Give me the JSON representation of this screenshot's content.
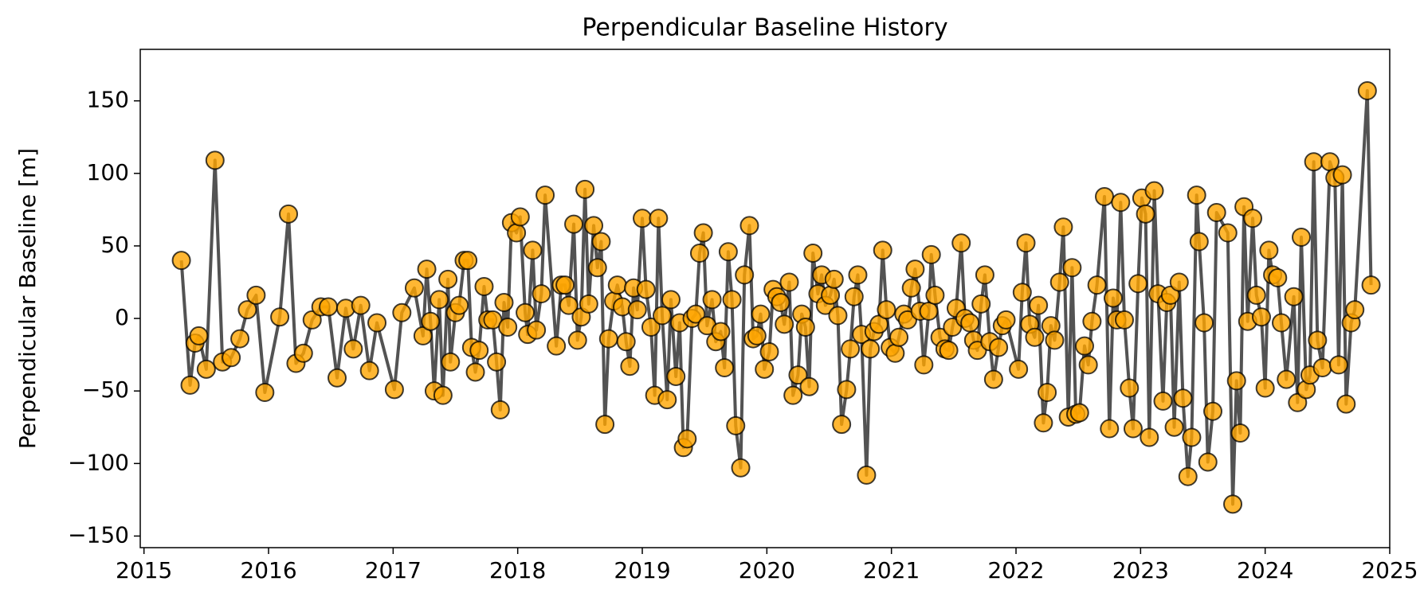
{
  "chart_data": {
    "type": "line",
    "title": "Perpendicular Baseline History",
    "ylabel": "Perpendicular Baseline [m]",
    "x": [
      2015.3,
      2015.37,
      2015.41,
      2015.44,
      2015.5,
      2015.57,
      2015.63,
      2015.7,
      2015.77,
      2015.83,
      2015.9,
      2015.97,
      2016.09,
      2016.16,
      2016.22,
      2016.28,
      2016.35,
      2016.42,
      2016.48,
      2016.55,
      2016.62,
      2016.68,
      2016.74,
      2016.81,
      2016.87,
      2017.01,
      2017.07,
      2017.17,
      2017.24,
      2017.27,
      2017.3,
      2017.33,
      2017.37,
      2017.4,
      2017.44,
      2017.46,
      2017.5,
      2017.53,
      2017.57,
      2017.6,
      2017.63,
      2017.66,
      2017.69,
      2017.73,
      2017.76,
      2017.8,
      2017.83,
      2017.86,
      2017.89,
      2017.92,
      2017.95,
      2017.99,
      2018.02,
      2018.06,
      2018.08,
      2018.12,
      2018.15,
      2018.19,
      2018.22,
      2018.31,
      2018.35,
      2018.38,
      2018.41,
      2018.45,
      2018.48,
      2018.51,
      2018.54,
      2018.57,
      2018.61,
      2018.64,
      2018.67,
      2018.7,
      2018.73,
      2018.77,
      2018.8,
      2018.84,
      2018.87,
      2018.9,
      2018.93,
      2018.96,
      2019.0,
      2019.03,
      2019.07,
      2019.1,
      2019.13,
      2019.16,
      2019.2,
      2019.23,
      2019.27,
      2019.3,
      2019.33,
      2019.36,
      2019.4,
      2019.43,
      2019.46,
      2019.49,
      2019.52,
      2019.56,
      2019.59,
      2019.63,
      2019.66,
      2019.69,
      2019.72,
      2019.75,
      2019.79,
      2019.82,
      2019.86,
      2019.89,
      2019.92,
      2019.95,
      2019.98,
      2020.02,
      2020.05,
      2020.08,
      2020.11,
      2020.14,
      2020.18,
      2020.21,
      2020.25,
      2020.28,
      2020.31,
      2020.34,
      2020.37,
      2020.41,
      2020.44,
      2020.47,
      2020.51,
      2020.54,
      2020.57,
      2020.6,
      2020.64,
      2020.67,
      2020.7,
      2020.73,
      2020.76,
      2020.8,
      2020.83,
      2020.86,
      2020.9,
      2020.93,
      2020.96,
      2020.99,
      2021.03,
      2021.06,
      2021.1,
      2021.13,
      2021.16,
      2021.19,
      2021.23,
      2021.26,
      2021.3,
      2021.32,
      2021.35,
      2021.39,
      2021.43,
      2021.46,
      2021.49,
      2021.52,
      2021.56,
      2021.59,
      2021.63,
      2021.66,
      2021.69,
      2021.72,
      2021.75,
      2021.79,
      2021.82,
      2021.86,
      2021.89,
      2021.92,
      2022.02,
      2022.05,
      2022.08,
      2022.11,
      2022.15,
      2022.18,
      2022.22,
      2022.25,
      2022.28,
      2022.31,
      2022.35,
      2022.38,
      2022.42,
      2022.45,
      2022.48,
      2022.51,
      2022.55,
      2022.58,
      2022.61,
      2022.65,
      2022.71,
      2022.75,
      2022.78,
      2022.81,
      2022.84,
      2022.87,
      2022.91,
      2022.94,
      2022.98,
      2023.01,
      2023.04,
      2023.07,
      2023.11,
      2023.14,
      2023.18,
      2023.21,
      2023.24,
      2023.27,
      2023.31,
      2023.34,
      2023.38,
      2023.41,
      2023.45,
      2023.47,
      2023.51,
      2023.54,
      2023.58,
      2023.61,
      2023.7,
      2023.74,
      2023.77,
      2023.8,
      2023.83,
      2023.86,
      2023.9,
      2023.93,
      2023.97,
      2024.0,
      2024.03,
      2024.06,
      2024.1,
      2024.13,
      2024.17,
      2024.23,
      2024.26,
      2024.29,
      2024.33,
      2024.36,
      2024.39,
      2024.42,
      2024.46,
      2024.52,
      2024.56,
      2024.59,
      2024.62,
      2024.65,
      2024.69,
      2024.72,
      2024.82,
      2024.85
    ],
    "series": [
      {
        "color": "#404040",
        "marker_color": "#ffa500",
        "values": [
          40,
          -46,
          -17,
          -12,
          -35,
          109,
          -30,
          -27,
          -14,
          6,
          16,
          -51,
          1,
          72,
          -31,
          -24,
          -1,
          8,
          8,
          -41,
          7,
          -21,
          9,
          -36,
          -3,
          -49,
          4,
          21,
          -12,
          34,
          -2,
          -50,
          13,
          -53,
          27,
          -30,
          4,
          9,
          40,
          40,
          -20,
          -37,
          -22,
          22,
          -1,
          -1,
          -30,
          -63,
          11,
          -6,
          66,
          59,
          70,
          4,
          -11,
          47,
          -8,
          17,
          85,
          -19,
          23,
          23,
          9,
          65,
          -15,
          1,
          89,
          10,
          64,
          35,
          53,
          -73,
          -14,
          12,
          23,
          8,
          -16,
          -33,
          21,
          6,
          69,
          20,
          -6,
          -53,
          69,
          2,
          -56,
          13,
          -40,
          -3,
          -89,
          -83,
          0,
          3,
          45,
          59,
          -5,
          13,
          -16,
          -9,
          -34,
          46,
          13,
          -74,
          -103,
          30,
          64,
          -14,
          -12,
          3,
          -35,
          -23,
          20,
          15,
          11,
          -4,
          25,
          -53,
          -39,
          3,
          -6,
          -47,
          45,
          17,
          30,
          9,
          16,
          27,
          2,
          -73,
          -49,
          -21,
          15,
          30,
          -11,
          -108,
          -21,
          -9,
          -4,
          47,
          6,
          -20,
          -24,
          -13,
          3,
          -1,
          21,
          34,
          5,
          -32,
          5,
          44,
          16,
          -13,
          -21,
          -22,
          -6,
          7,
          52,
          0,
          -3,
          -15,
          -22,
          10,
          30,
          -16,
          -42,
          -20,
          -5,
          -1,
          -35,
          18,
          52,
          -4,
          -13,
          9,
          -72,
          -51,
          -5,
          -15,
          25,
          63,
          -68,
          35,
          -66,
          -65,
          -19,
          -32,
          -2,
          23,
          84,
          -76,
          14,
          -1,
          80,
          -1,
          -48,
          -76,
          24,
          83,
          72,
          -82,
          88,
          17,
          -57,
          11,
          16,
          -75,
          25,
          -55,
          -109,
          -82,
          85,
          53,
          -3,
          -99,
          -64,
          73,
          59,
          -128,
          -43,
          -79,
          77,
          -2,
          69,
          16,
          1,
          -48,
          47,
          30,
          28,
          -3,
          -42,
          15,
          -58,
          56,
          -49,
          -39,
          108,
          -15,
          -34,
          108,
          97,
          -32,
          99,
          -59,
          -3,
          6,
          157,
          23
        ]
      }
    ],
    "xlim": [
      2014.97,
      2025.0
    ],
    "xticks": [
      2015,
      2016,
      2017,
      2018,
      2019,
      2020,
      2021,
      2022,
      2023,
      2024,
      2025
    ],
    "ylim": [
      -158,
      185.5
    ],
    "yticks": [
      {
        "value": -150,
        "label": "−150"
      },
      {
        "value": -100,
        "label": "−100"
      },
      {
        "value": -50,
        "label": "−50"
      },
      0,
      50,
      100,
      150
    ],
    "grid": false
  }
}
